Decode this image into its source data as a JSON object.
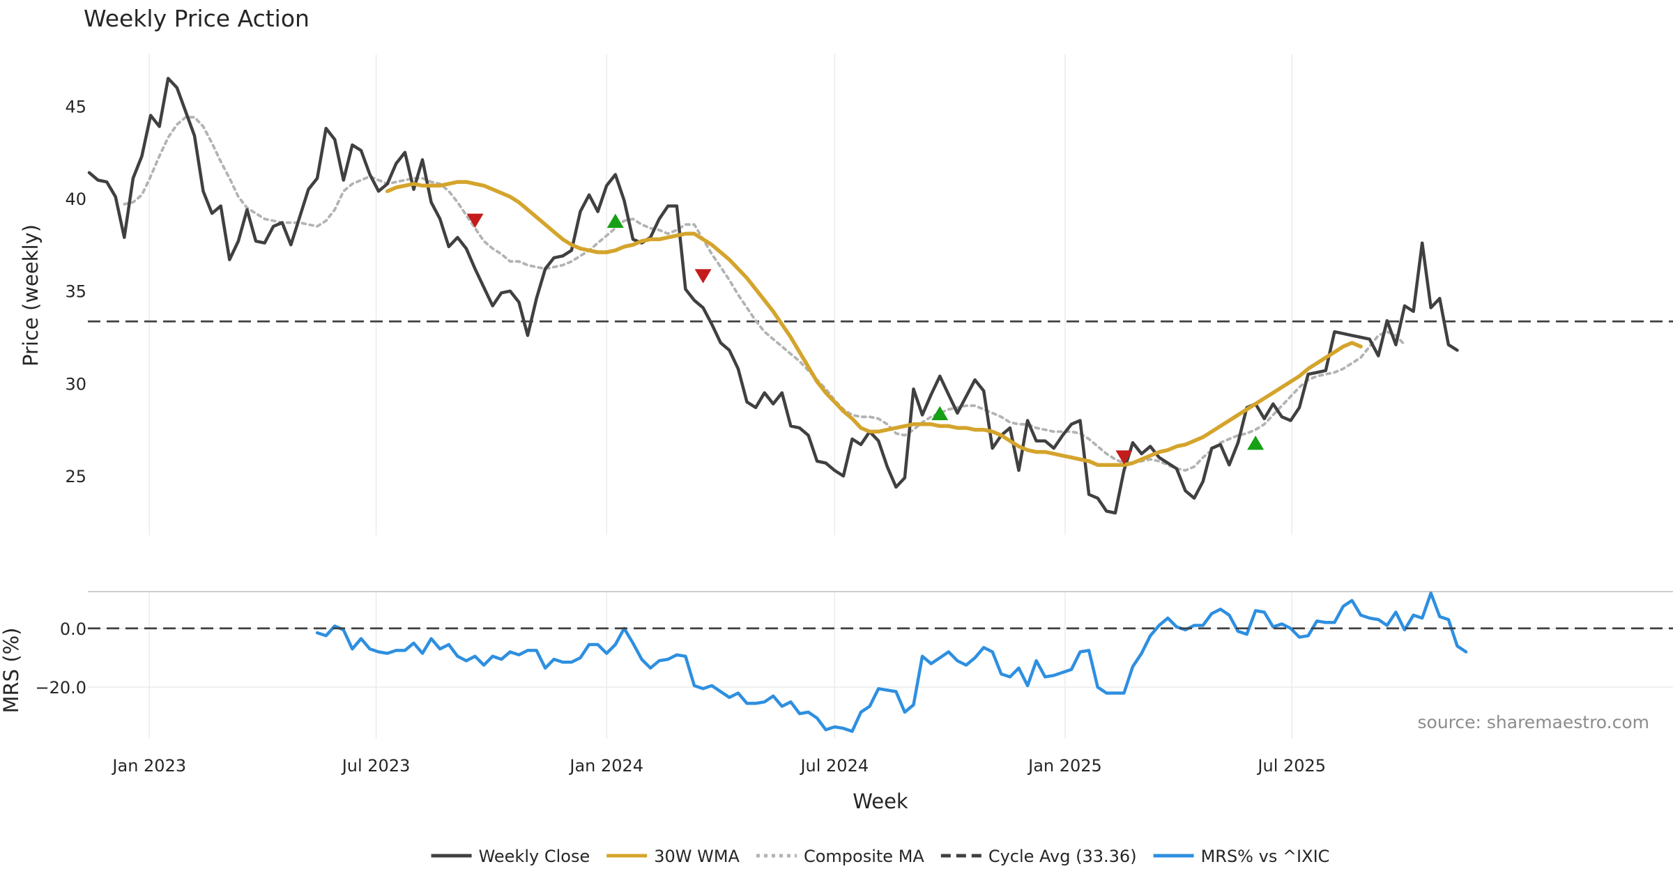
{
  "chart_data": [
    {
      "type": "line",
      "title": "Weekly Price Action",
      "xlabel": "",
      "ylabel": "Price (weekly)",
      "ylim": [
        21.8,
        47.8
      ],
      "yticks": [
        25,
        30,
        35,
        40,
        45
      ],
      "grid": "vertical",
      "x_start": "2022-11-14",
      "x_step_days": 7,
      "series": [
        {
          "name": "Weekly Close",
          "color": "#404040",
          "style": "solid",
          "start_index": 0,
          "values": [
            41.4,
            41.0,
            40.9,
            40.1,
            37.9,
            41.1,
            42.3,
            44.5,
            43.9,
            46.5,
            46.0,
            44.7,
            43.4,
            40.4,
            39.2,
            39.6,
            36.7,
            37.7,
            39.4,
            37.7,
            37.6,
            38.5,
            38.7,
            37.5,
            39.0,
            40.5,
            41.1,
            43.8,
            43.2,
            41.0,
            42.9,
            42.6,
            41.3,
            40.4,
            40.8,
            41.9,
            42.5,
            40.5,
            42.1,
            39.8,
            38.9,
            37.4,
            37.9,
            37.3,
            36.2,
            35.2,
            34.2,
            34.9,
            35.0,
            34.4,
            32.6,
            34.6,
            36.2,
            36.8,
            36.9,
            37.2,
            39.3,
            40.2,
            39.3,
            40.7,
            41.3,
            39.9,
            37.8,
            37.6,
            37.9,
            38.9,
            39.6,
            39.6,
            35.1,
            34.5,
            34.1,
            33.2,
            32.2,
            31.8,
            30.8,
            29.0,
            28.7,
            29.5,
            28.9,
            29.5,
            27.7,
            27.6,
            27.2,
            25.8,
            25.7,
            25.3,
            25.0,
            27.0,
            26.7,
            27.4,
            26.9,
            25.5,
            24.4,
            24.9,
            29.7,
            28.3,
            29.4,
            30.4,
            29.4,
            28.4,
            29.3,
            30.2,
            29.6,
            26.5,
            27.2,
            27.6,
            25.3,
            28.0,
            26.9,
            26.9,
            26.5,
            27.2,
            27.8,
            28.0,
            24.0,
            23.8,
            23.1,
            23.0,
            25.3,
            26.8,
            26.2,
            26.6,
            26.0,
            25.7,
            25.4,
            24.2,
            23.8,
            24.7,
            26.5,
            26.7,
            25.6,
            26.8,
            28.7,
            28.9,
            28.1,
            28.9,
            28.2,
            28.0,
            28.7,
            30.5,
            30.6,
            30.7,
            32.8,
            32.7,
            32.6,
            32.5,
            32.4,
            31.5,
            33.4,
            32.1,
            34.2,
            33.9,
            37.6,
            34.1,
            34.6,
            32.1,
            31.8
          ]
        },
        {
          "name": "30W WMA",
          "color": "#d4a42c",
          "style": "solid",
          "start_index": 34,
          "values": [
            40.4,
            40.6,
            40.7,
            40.8,
            40.7,
            40.7,
            40.7,
            40.8,
            40.9,
            40.9,
            40.8,
            40.7,
            40.5,
            40.3,
            40.1,
            39.8,
            39.4,
            39.0,
            38.6,
            38.2,
            37.8,
            37.5,
            37.3,
            37.2,
            37.1,
            37.1,
            37.2,
            37.4,
            37.5,
            37.7,
            37.8,
            37.8,
            37.9,
            38.0,
            38.1,
            38.1,
            37.8,
            37.5,
            37.1,
            36.7,
            36.2,
            35.7,
            35.1,
            34.5,
            33.9,
            33.2,
            32.5,
            31.7,
            30.9,
            30.1,
            29.5,
            29.0,
            28.5,
            28.1,
            27.6,
            27.4,
            27.4,
            27.5,
            27.6,
            27.7,
            27.8,
            27.8,
            27.8,
            27.7,
            27.7,
            27.6,
            27.6,
            27.5,
            27.5,
            27.4,
            27.2,
            26.9,
            26.6,
            26.4,
            26.3,
            26.3,
            26.2,
            26.1,
            26.0,
            25.9,
            25.8,
            25.6,
            25.6,
            25.6,
            25.6,
            25.7,
            25.9,
            26.1,
            26.3,
            26.4,
            26.6,
            26.7,
            26.9,
            27.1,
            27.4,
            27.7,
            28.0,
            28.3,
            28.6,
            28.9,
            29.2,
            29.5,
            29.8,
            30.1,
            30.4,
            30.8,
            31.1,
            31.4,
            31.7,
            32.0,
            32.2,
            32.0
          ]
        },
        {
          "name": "Composite MA",
          "color": "#b3b3b3",
          "style": "dotted",
          "start_index": 4,
          "values": [
            39.7,
            39.8,
            40.2,
            41.2,
            42.3,
            43.3,
            44.0,
            44.4,
            44.4,
            43.9,
            43.0,
            42.0,
            41.1,
            40.1,
            39.5,
            39.2,
            38.9,
            38.8,
            38.7,
            38.7,
            38.7,
            38.6,
            38.5,
            38.8,
            39.4,
            40.4,
            40.8,
            41.0,
            41.2,
            41.0,
            40.8,
            40.9,
            41.0,
            41.1,
            41.1,
            40.9,
            40.8,
            40.4,
            39.8,
            39.1,
            38.4,
            37.7,
            37.3,
            37.0,
            36.6,
            36.6,
            36.4,
            36.3,
            36.2,
            36.3,
            36.4,
            36.6,
            36.9,
            37.2,
            37.6,
            38.0,
            38.4,
            38.8,
            38.9,
            38.6,
            38.4,
            38.3,
            38.1,
            38.3,
            38.6,
            38.6,
            37.8,
            37.0,
            36.3,
            35.6,
            34.8,
            34.1,
            33.4,
            32.8,
            32.4,
            32.0,
            31.6,
            31.2,
            30.7,
            30.2,
            29.7,
            29.1,
            28.6,
            28.3,
            28.2,
            28.2,
            28.1,
            27.8,
            27.3,
            27.2,
            27.5,
            27.9,
            28.2,
            28.4,
            28.6,
            28.7,
            28.8,
            28.8,
            28.6,
            28.4,
            28.2,
            27.9,
            27.8,
            27.8,
            27.6,
            27.5,
            27.4,
            27.4,
            27.4,
            27.3,
            27.0,
            26.6,
            26.2,
            25.9,
            25.7,
            25.7,
            25.8,
            25.9,
            25.8,
            25.6,
            25.4,
            25.3,
            25.5,
            26.0,
            26.4,
            26.8,
            27.0,
            27.2,
            27.3,
            27.5,
            27.8,
            28.3,
            28.8,
            29.3,
            29.8,
            30.2,
            30.4,
            30.5,
            30.6,
            30.8,
            31.1,
            31.4,
            32.0,
            32.6,
            32.8,
            32.6,
            32.1
          ]
        },
        {
          "name": "Cycle Avg (33.36)",
          "color": "#404040",
          "style": "dashed",
          "constant": 33.36
        }
      ],
      "markers": [
        {
          "type": "sell",
          "shape": "triangle-down",
          "color": "#c41c1c",
          "index": 44,
          "value": 38.8
        },
        {
          "type": "buy",
          "shape": "triangle-up",
          "color": "#16a016",
          "index": 60,
          "value": 38.8
        },
        {
          "type": "sell",
          "shape": "triangle-down",
          "color": "#c41c1c",
          "index": 70,
          "value": 35.8
        },
        {
          "type": "buy",
          "shape": "triangle-up",
          "color": "#16a016",
          "index": 97,
          "value": 28.4
        },
        {
          "type": "sell",
          "shape": "triangle-down",
          "color": "#c41c1c",
          "index": 118,
          "value": 26.0
        },
        {
          "type": "buy",
          "shape": "triangle-up",
          "color": "#16a016",
          "index": 133,
          "value": 26.8
        }
      ]
    },
    {
      "type": "line",
      "title": "",
      "xlabel": "Week",
      "ylabel": "MRS (%)",
      "ylim": [
        -37.5,
        12.5
      ],
      "yticks": [
        0.0,
        -20.0
      ],
      "ytick_labels": [
        "0.0",
        "−20.0"
      ],
      "xtick_labels": [
        "Jan 2023",
        "Jul 2023",
        "Jan 2024",
        "Jul 2024",
        "Jan 2025",
        "Jul 2025"
      ],
      "xtick_dates": [
        "2023-01-01",
        "2023-07-01",
        "2024-01-01",
        "2024-07-01",
        "2025-01-01",
        "2025-07-01"
      ],
      "series": [
        {
          "name": "MRS% vs ^IXIC",
          "color": "#2e8fe0",
          "style": "solid",
          "start_index": 26,
          "values": [
            -1.5,
            -2.5,
            0.8,
            -0.5,
            -7.0,
            -3.5,
            -7.0,
            -8.0,
            -8.5,
            -7.5,
            -7.5,
            -5.0,
            -8.5,
            -3.5,
            -7.0,
            -5.5,
            -9.5,
            -11.0,
            -9.5,
            -12.5,
            -9.5,
            -10.5,
            -8.0,
            -9.0,
            -7.5,
            -7.5,
            -13.5,
            -10.5,
            -11.5,
            -11.5,
            -10.0,
            -5.5,
            -5.5,
            -8.5,
            -5.5,
            0.0,
            -5.0,
            -10.5,
            -13.5,
            -11.0,
            -10.5,
            -9.0,
            -9.5,
            -19.5,
            -20.5,
            -19.5,
            -21.5,
            -23.5,
            -22.0,
            -25.5,
            -25.5,
            -25.0,
            -23.0,
            -26.5,
            -25.0,
            -29.0,
            -28.5,
            -30.5,
            -34.5,
            -33.5,
            -34.0,
            -35.0,
            -28.5,
            -26.5,
            -20.5,
            -21.0,
            -21.5,
            -28.5,
            -26.0,
            -9.5,
            -12.0,
            -10.0,
            -8.0,
            -11.0,
            -12.5,
            -10.0,
            -6.5,
            -8.0,
            -15.5,
            -16.5,
            -13.5,
            -19.5,
            -11.0,
            -16.5,
            -16.0,
            -15.0,
            -14.0,
            -8.0,
            -7.5,
            -20.0,
            -22.0,
            -22.0,
            -22.0,
            -13.0,
            -8.5,
            -2.5,
            1.0,
            3.5,
            0.5,
            -0.5,
            1.0,
            1.0,
            5.0,
            6.5,
            4.5,
            -1.0,
            -2.0,
            6.0,
            5.5,
            0.5,
            1.5,
            0.0,
            -3.0,
            -2.5,
            2.5,
            2.0,
            2.0,
            7.5,
            9.5,
            4.5,
            3.5,
            3.0,
            1.0,
            5.5,
            -0.5,
            4.5,
            3.5,
            12.0,
            4.0,
            3.0,
            -6.0,
            -8.0
          ]
        },
        {
          "name": "Zero",
          "color": "#404040",
          "style": "dashed",
          "constant": 0
        }
      ],
      "annotation": "source: sharemaestro.com"
    }
  ],
  "legend": {
    "position": "bottom-center",
    "items": [
      {
        "label": "Weekly Close",
        "color": "#404040",
        "style": "solid"
      },
      {
        "label": "30W WMA",
        "color": "#d4a42c",
        "style": "solid"
      },
      {
        "label": "Composite MA",
        "color": "#b3b3b3",
        "style": "dotted"
      },
      {
        "label": "Cycle Avg (33.36)",
        "color": "#404040",
        "style": "dashed"
      },
      {
        "label": "MRS% vs ^IXIC",
        "color": "#2e8fe0",
        "style": "solid"
      }
    ]
  }
}
